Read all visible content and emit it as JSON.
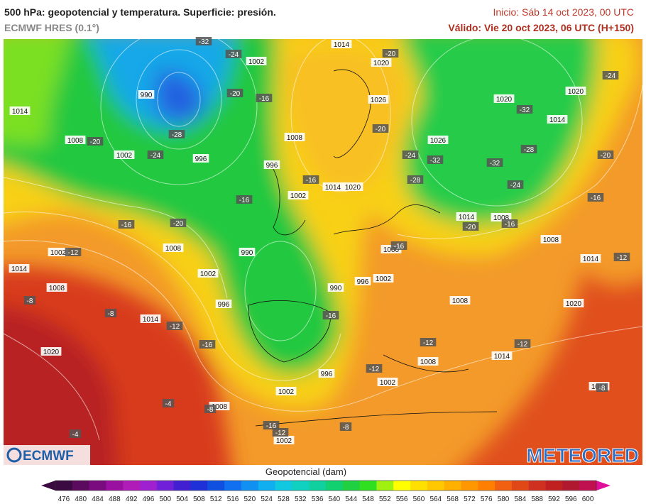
{
  "header": {
    "title": "500 hPa: geopotencial y temperatura. Superficie: presión.",
    "model": "ECMWF HRES (0.1°)",
    "init": "Inicio: Sáb 14 oct 2023, 00 UTC",
    "valid": "Válido: Vie 20 oct 2023, 06 UTC (H+150)"
  },
  "map": {
    "pressure_labels": [
      "1014",
      "1002",
      "990",
      "1014",
      "1008",
      "1002",
      "996",
      "996",
      "1008",
      "1002",
      "1014",
      "1020",
      "1020",
      "1026",
      "1020",
      "1020",
      "1014",
      "1026",
      "1014",
      "1008",
      "1008",
      "1014",
      "1002",
      "1014",
      "1008",
      "1008",
      "1002",
      "990",
      "990",
      "996",
      "1002",
      "1000",
      "1008",
      "1020",
      "996",
      "1014",
      "1020",
      "1014",
      "1008",
      "996",
      "1002",
      "1002",
      "1008",
      "1002",
      "1014"
    ],
    "temperature_labels": [
      "-32",
      "-24",
      "-20",
      "-16",
      "-28",
      "-20",
      "-24",
      "-16",
      "-16",
      "-20",
      "-20",
      "-32",
      "-24",
      "-32",
      "-28",
      "-32",
      "-28",
      "-24",
      "-24",
      "-20",
      "-16",
      "-20",
      "-16",
      "-16",
      "-20",
      "-12",
      "-16",
      "-12",
      "-8",
      "-8",
      "-12",
      "-16",
      "-16",
      "-12",
      "-12",
      "-12",
      "-4",
      "-8",
      "-16",
      "-12",
      "-8",
      "-4",
      "-8"
    ],
    "logos": {
      "left": "ECMWF",
      "right": "METEORED"
    }
  },
  "colorbar": {
    "title": "Geopotencial (dam)",
    "labels": [
      476,
      480,
      484,
      488,
      492,
      496,
      500,
      504,
      508,
      512,
      516,
      520,
      524,
      528,
      532,
      536,
      540,
      544,
      548,
      552,
      556,
      560,
      564,
      568,
      572,
      576,
      580,
      584,
      588,
      592,
      596,
      600
    ],
    "colors": [
      "#3a0a40",
      "#5a0b5e",
      "#7a0c80",
      "#9a10a0",
      "#b01cb8",
      "#a020d0",
      "#7020d8",
      "#4020d0",
      "#2030d8",
      "#1050e0",
      "#1070f0",
      "#1090f0",
      "#10b0f0",
      "#10c8e0",
      "#10d0c0",
      "#10d0a0",
      "#10d070",
      "#20d040",
      "#30e020",
      "#a0f010",
      "#ffff00",
      "#ffe000",
      "#ffc800",
      "#ffb000",
      "#ff9800",
      "#ff8000",
      "#f06010",
      "#e04818",
      "#d03020",
      "#c02020",
      "#b01830",
      "#c01050"
    ]
  }
}
